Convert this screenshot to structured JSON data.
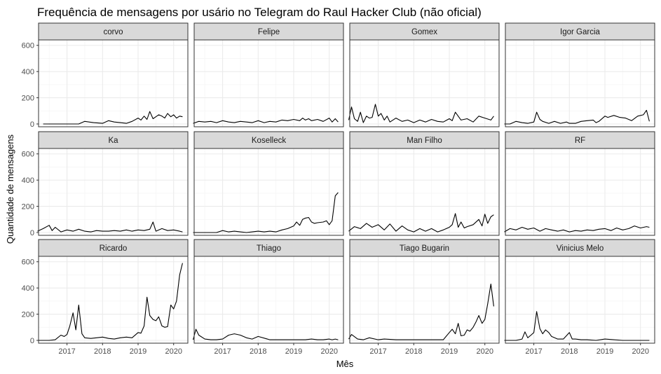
{
  "chart_data": {
    "type": "line",
    "title": "Frequência de mensagens por usário no Telegram do Raul Hacker Club (não oficial)",
    "xlabel": "Mês",
    "ylabel": "Quantidade de mensagens",
    "xlim": [
      2016.2,
      2020.4
    ],
    "ylim": [
      0,
      620
    ],
    "x_ticks": [
      2017,
      2018,
      2019,
      2020
    ],
    "y_ticks": [
      0,
      200,
      400,
      600
    ],
    "grid": true,
    "facet_layout": {
      "rows": 3,
      "cols": 4
    },
    "colors": {
      "line": "#000000",
      "strip_fill": "#d9d9d9",
      "panel_border": "#333333",
      "grid_major": "#ebebeb",
      "grid_minor": "#f5f5f5"
    },
    "panels": [
      {
        "name": "corvo",
        "x": [
          2016.33,
          2016.67,
          2017,
          2017.33,
          2017.5,
          2017.75,
          2018,
          2018.17,
          2018.33,
          2018.5,
          2018.67,
          2018.83,
          2019,
          2019.08,
          2019.17,
          2019.25,
          2019.33,
          2019.42,
          2019.5,
          2019.58,
          2019.67,
          2019.75,
          2019.83,
          2019.92,
          2020,
          2020.08,
          2020.17,
          2020.25
        ],
        "y": [
          0,
          0,
          0,
          0,
          20,
          10,
          5,
          25,
          15,
          10,
          5,
          20,
          45,
          30,
          60,
          35,
          95,
          40,
          55,
          70,
          60,
          45,
          80,
          55,
          70,
          45,
          60,
          55
        ]
      },
      {
        "name": "Felipe",
        "x": [
          2016.17,
          2016.33,
          2016.5,
          2016.67,
          2016.83,
          2017,
          2017.17,
          2017.33,
          2017.5,
          2017.67,
          2017.83,
          2018,
          2018.17,
          2018.33,
          2018.5,
          2018.67,
          2018.83,
          2019,
          2019.17,
          2019.25,
          2019.33,
          2019.42,
          2019.5,
          2019.67,
          2019.83,
          2020,
          2020.08,
          2020.17,
          2020.25
        ],
        "y": [
          5,
          20,
          15,
          20,
          10,
          25,
          15,
          10,
          20,
          15,
          10,
          25,
          10,
          20,
          15,
          30,
          25,
          35,
          25,
          45,
          30,
          40,
          25,
          35,
          20,
          45,
          15,
          40,
          15
        ]
      },
      {
        "name": "Gomex",
        "x": [
          2016.17,
          2016.25,
          2016.33,
          2016.42,
          2016.5,
          2016.58,
          2016.67,
          2016.75,
          2016.83,
          2016.92,
          2017,
          2017.08,
          2017.17,
          2017.25,
          2017.33,
          2017.5,
          2017.67,
          2017.83,
          2018,
          2018.17,
          2018.33,
          2018.5,
          2018.67,
          2018.83,
          2019,
          2019.08,
          2019.17,
          2019.33,
          2019.5,
          2019.67,
          2019.83,
          2020,
          2020.17,
          2020.25
        ],
        "y": [
          30,
          130,
          40,
          20,
          90,
          10,
          60,
          45,
          50,
          150,
          60,
          80,
          30,
          60,
          15,
          45,
          20,
          30,
          10,
          30,
          15,
          35,
          20,
          15,
          40,
          25,
          90,
          30,
          40,
          15,
          60,
          45,
          30,
          60
        ]
      },
      {
        "name": "Igor Garcia",
        "x": [
          2016.17,
          2016.33,
          2016.5,
          2016.67,
          2016.83,
          2017,
          2017.08,
          2017.17,
          2017.25,
          2017.42,
          2017.58,
          2017.75,
          2017.92,
          2018,
          2018.17,
          2018.33,
          2018.5,
          2018.67,
          2018.75,
          2018.83,
          2019,
          2019.08,
          2019.25,
          2019.42,
          2019.58,
          2019.75,
          2019.92,
          2020.08,
          2020.17,
          2020.25
        ],
        "y": [
          0,
          0,
          20,
          10,
          5,
          15,
          90,
          35,
          20,
          5,
          20,
          5,
          15,
          5,
          5,
          20,
          25,
          30,
          10,
          20,
          60,
          50,
          65,
          50,
          45,
          25,
          60,
          70,
          105,
          20
        ]
      },
      {
        "name": "Ka",
        "x": [
          2016.17,
          2016.33,
          2016.5,
          2016.58,
          2016.67,
          2016.83,
          2017,
          2017.17,
          2017.33,
          2017.5,
          2017.67,
          2017.83,
          2018,
          2018.17,
          2018.33,
          2018.5,
          2018.67,
          2018.83,
          2019,
          2019.17,
          2019.33,
          2019.42,
          2019.5,
          2019.67,
          2019.83,
          2020,
          2020.17,
          2020.25
        ],
        "y": [
          10,
          30,
          55,
          15,
          40,
          5,
          20,
          10,
          25,
          10,
          5,
          15,
          10,
          10,
          15,
          10,
          20,
          10,
          20,
          15,
          25,
          80,
          10,
          30,
          15,
          20,
          10,
          5
        ]
      },
      {
        "name": "Koselleck",
        "x": [
          2016.17,
          2016.5,
          2016.83,
          2017,
          2017.17,
          2017.33,
          2017.5,
          2017.67,
          2017.83,
          2018,
          2018.17,
          2018.33,
          2018.5,
          2018.67,
          2018.83,
          2019,
          2019.08,
          2019.17,
          2019.25,
          2019.33,
          2019.42,
          2019.5,
          2019.58,
          2019.67,
          2019.83,
          2019.92,
          2020,
          2020.08,
          2020.17,
          2020.25
        ],
        "y": [
          0,
          0,
          0,
          15,
          5,
          10,
          5,
          0,
          5,
          10,
          5,
          10,
          5,
          20,
          30,
          50,
          80,
          55,
          100,
          110,
          115,
          80,
          70,
          75,
          80,
          90,
          60,
          90,
          280,
          305
        ]
      },
      {
        "name": "Man Filho",
        "x": [
          2016.17,
          2016.33,
          2016.5,
          2016.67,
          2016.83,
          2017,
          2017.17,
          2017.33,
          2017.5,
          2017.67,
          2017.83,
          2018,
          2018.17,
          2018.33,
          2018.5,
          2018.67,
          2018.83,
          2019,
          2019.08,
          2019.17,
          2019.25,
          2019.33,
          2019.42,
          2019.5,
          2019.67,
          2019.83,
          2019.92,
          2020,
          2020.08,
          2020.17,
          2020.25
        ],
        "y": [
          10,
          45,
          30,
          70,
          40,
          60,
          20,
          65,
          10,
          50,
          20,
          5,
          30,
          10,
          30,
          5,
          20,
          40,
          60,
          145,
          40,
          80,
          35,
          45,
          60,
          100,
          50,
          140,
          70,
          120,
          135
        ]
      },
      {
        "name": "RF",
        "x": [
          2016.17,
          2016.33,
          2016.5,
          2016.67,
          2016.83,
          2017,
          2017.17,
          2017.33,
          2017.5,
          2017.67,
          2017.83,
          2018,
          2018.17,
          2018.33,
          2018.5,
          2018.67,
          2018.83,
          2019,
          2019.17,
          2019.33,
          2019.5,
          2019.67,
          2019.83,
          2020,
          2020.17,
          2020.25
        ],
        "y": [
          5,
          30,
          20,
          40,
          25,
          35,
          10,
          30,
          20,
          10,
          20,
          5,
          15,
          10,
          20,
          15,
          25,
          30,
          15,
          35,
          20,
          30,
          50,
          35,
          45,
          40
        ]
      },
      {
        "name": "Ricardo",
        "x": [
          2016.17,
          2016.5,
          2016.67,
          2016.83,
          2016.92,
          2017,
          2017.08,
          2017.17,
          2017.25,
          2017.33,
          2017.42,
          2017.5,
          2017.67,
          2017.83,
          2018,
          2018.17,
          2018.33,
          2018.5,
          2018.67,
          2018.83,
          2019,
          2019.08,
          2019.17,
          2019.25,
          2019.33,
          2019.42,
          2019.5,
          2019.58,
          2019.67,
          2019.75,
          2019.83,
          2019.92,
          2020,
          2020.08,
          2020.17,
          2020.25
        ],
        "y": [
          0,
          0,
          5,
          40,
          30,
          45,
          110,
          210,
          80,
          270,
          50,
          20,
          15,
          20,
          25,
          15,
          10,
          20,
          25,
          20,
          60,
          55,
          110,
          330,
          190,
          160,
          150,
          180,
          110,
          100,
          105,
          270,
          240,
          300,
          500,
          590
        ]
      },
      {
        "name": "Thiago",
        "x": [
          2016.17,
          2016.25,
          2016.33,
          2016.5,
          2016.67,
          2016.83,
          2017,
          2017.17,
          2017.33,
          2017.5,
          2017.67,
          2017.83,
          2018,
          2018.33,
          2018.67,
          2019,
          2019.33,
          2019.5,
          2019.67,
          2019.83,
          2020,
          2020.08,
          2020.17,
          2020.25
        ],
        "y": [
          5,
          85,
          40,
          10,
          5,
          5,
          10,
          40,
          50,
          40,
          20,
          10,
          30,
          5,
          5,
          5,
          5,
          10,
          5,
          5,
          10,
          5,
          10,
          5
        ]
      },
      {
        "name": "Tiago Bugarin",
        "x": [
          2016.17,
          2016.25,
          2016.42,
          2016.58,
          2016.75,
          2017,
          2017.17,
          2017.5,
          2018,
          2018.5,
          2018.83,
          2019,
          2019.08,
          2019.17,
          2019.25,
          2019.33,
          2019.42,
          2019.5,
          2019.58,
          2019.67,
          2019.75,
          2019.83,
          2019.92,
          2020,
          2020.08,
          2020.17,
          2020.25
        ],
        "y": [
          10,
          45,
          10,
          5,
          20,
          5,
          10,
          5,
          5,
          5,
          5,
          60,
          85,
          50,
          130,
          35,
          40,
          80,
          70,
          100,
          140,
          190,
          130,
          160,
          280,
          430,
          260
        ]
      },
      {
        "name": "Vinicius Melo",
        "x": [
          2016.17,
          2016.5,
          2016.67,
          2016.75,
          2016.83,
          2016.92,
          2017,
          2017.08,
          2017.17,
          2017.25,
          2017.33,
          2017.42,
          2017.5,
          2017.67,
          2017.83,
          2018,
          2018.08,
          2018.17,
          2018.33,
          2018.5,
          2018.75,
          2019,
          2019.5,
          2020,
          2020.25
        ],
        "y": [
          0,
          0,
          10,
          65,
          20,
          40,
          60,
          220,
          90,
          50,
          80,
          60,
          30,
          10,
          10,
          60,
          10,
          10,
          5,
          5,
          0,
          10,
          0,
          0,
          0
        ]
      }
    ]
  }
}
